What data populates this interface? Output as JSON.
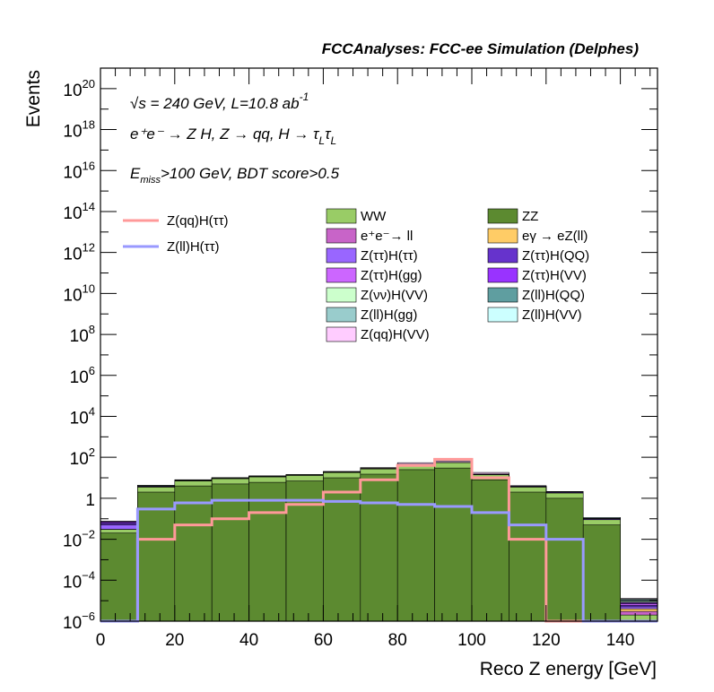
{
  "chart_data": {
    "type": "area",
    "title": "FCCAnalyses: FCC-ee Simulation (Delphes)",
    "xlabel": "Reco Z energy [GeV]",
    "ylabel": "Events",
    "xlim": [
      0,
      150
    ],
    "ylim": [
      1e-06,
      1e+21
    ],
    "y_scale": "log",
    "x_ticks": [
      {
        "v": 0,
        "label": "0"
      },
      {
        "v": 20,
        "label": "20"
      },
      {
        "v": 40,
        "label": "40"
      },
      {
        "v": 60,
        "label": "60"
      },
      {
        "v": 80,
        "label": "80"
      },
      {
        "v": 100,
        "label": "100"
      },
      {
        "v": 120,
        "label": "120"
      },
      {
        "v": 140,
        "label": "140"
      }
    ],
    "y_ticks": [
      {
        "exp": -6,
        "label": "10",
        "sup": "−6"
      },
      {
        "exp": -4,
        "label": "10",
        "sup": "−4"
      },
      {
        "exp": -2,
        "label": "10",
        "sup": "−2"
      },
      {
        "exp": 0,
        "label": "1",
        "sup": ""
      },
      {
        "exp": 2,
        "label": "10",
        "sup": "2"
      },
      {
        "exp": 4,
        "label": "10",
        "sup": "4"
      },
      {
        "exp": 6,
        "label": "10",
        "sup": "6"
      },
      {
        "exp": 8,
        "label": "10",
        "sup": "8"
      },
      {
        "exp": 10,
        "label": "10",
        "sup": "10"
      },
      {
        "exp": 12,
        "label": "10",
        "sup": "12"
      },
      {
        "exp": 14,
        "label": "10",
        "sup": "14"
      },
      {
        "exp": 16,
        "label": "10",
        "sup": "16"
      },
      {
        "exp": 18,
        "label": "10",
        "sup": "18"
      },
      {
        "exp": 20,
        "label": "10",
        "sup": "20"
      }
    ],
    "annotations": {
      "line1": "√s = 240 GeV, L=10.8 ab",
      "line1_sup": "-1",
      "line2": "e⁺e⁻ → Z H, Z → qq, H → τ",
      "line2_sub": "L",
      "line3": "E",
      "line3_sub": "miss",
      "line3_rest": ">100 GeV, BDT score>0.5"
    },
    "x_bin_centers": [
      5,
      15,
      25,
      35,
      45,
      55,
      65,
      75,
      85,
      95,
      105,
      115,
      125,
      135,
      145
    ],
    "series": [
      {
        "name": "ZZ",
        "color": "#5c8a30",
        "values": [
          0.02,
          2,
          4,
          5,
          6,
          7,
          10,
          15,
          25,
          30,
          8,
          2,
          1,
          0.05,
          1e-06
        ]
      },
      {
        "name": "WW",
        "color": "#99cc66",
        "values": [
          0.01,
          1.5,
          3,
          4,
          5,
          6,
          8,
          12,
          20,
          25,
          6,
          1.5,
          0.8,
          0.04,
          1e-06
        ]
      },
      {
        "name": "e⁺e⁻→ ll",
        "color": "#c864c8",
        "values": [
          1e-06,
          1e-06,
          1e-06,
          1e-06,
          1e-06,
          1e-06,
          1e-06,
          1e-06,
          1e-06,
          1e-06,
          1e-06,
          1e-06,
          1e-06,
          1e-06,
          1e-06
        ]
      },
      {
        "name": "eγ → eZ(ll)",
        "color": "#ffcc66",
        "values": [
          1e-06,
          1e-06,
          1e-06,
          0.01,
          1e-06,
          1e-06,
          1e-06,
          1e-06,
          1e-06,
          1e-06,
          1e-06,
          1e-06,
          1e-06,
          1e-06,
          1e-06
        ]
      },
      {
        "name": "Z(ττ)H(ττ)",
        "color": "#9966ff",
        "values": [
          0.02,
          0.05,
          0.05,
          0.05,
          0.05,
          0.05,
          0.05,
          0.05,
          0.05,
          0.05,
          0.05,
          0.05,
          0.01,
          0.001,
          1e-06
        ]
      },
      {
        "name": "Z(ττ)H(QQ)",
        "color": "#6633cc",
        "values": [
          0.01,
          0.3,
          0.3,
          0.3,
          0.3,
          0.3,
          0.3,
          0.3,
          0.3,
          0.3,
          0.5,
          0.3,
          0.2,
          0.01,
          1e-06
        ]
      },
      {
        "name": "Z(ττ)H(gg)",
        "color": "#cc66ff",
        "values": [
          0.001,
          0.01,
          0.01,
          0.01,
          0.01,
          0.01,
          0.01,
          0.01,
          0.01,
          0.01,
          0.01,
          0.01,
          0.01,
          0.001,
          1e-06
        ]
      },
      {
        "name": "Z(ττ)H(VV)",
        "color": "#9933ff",
        "values": [
          0.01,
          0.1,
          0.1,
          0.1,
          0.1,
          0.1,
          0.1,
          0.1,
          0.1,
          0.1,
          0.1,
          0.05,
          0.02,
          0.001,
          1e-06
        ]
      },
      {
        "name": "Z(νν)H(VV)",
        "color": "#ccffcc",
        "values": [
          0.001,
          0.3,
          0.5,
          0.6,
          0.7,
          0.8,
          1,
          1,
          1,
          1,
          0.5,
          0.1,
          0.05,
          0.001,
          1e-06
        ]
      },
      {
        "name": "Z(ll)H(QQ)",
        "color": "#5f9ea0",
        "values": [
          0.001,
          0.01,
          0.01,
          0.01,
          0.01,
          0.01,
          0.01,
          0.01,
          0.01,
          0.01,
          0.01,
          0.01,
          0.01,
          0.001,
          1e-06
        ]
      },
      {
        "name": "Z(ll)H(gg)",
        "color": "#99cccc",
        "values": [
          0.001,
          0.001,
          0.001,
          0.001,
          0.001,
          0.001,
          0.001,
          0.001,
          0.001,
          0.001,
          0.001,
          0.001,
          0.001,
          0.0001,
          1e-06
        ]
      },
      {
        "name": "Z(ll)H(VV)",
        "color": "#ccffff",
        "values": [
          0.001,
          0.01,
          0.01,
          0.01,
          0.01,
          0.01,
          0.01,
          0.01,
          0.01,
          0.01,
          0.01,
          0.01,
          0.01,
          0.01,
          1e-06
        ]
      },
      {
        "name": "Z(qq)H(VV)",
        "color": "#ffccff",
        "values": [
          1e-06,
          1e-06,
          0.01,
          0.05,
          0.1,
          0.3,
          1,
          3,
          8,
          10,
          3,
          0.1,
          1e-06,
          1e-06,
          1e-06
        ]
      }
    ],
    "overlays": [
      {
        "name": "Z(qq)H(ττ)",
        "color": "#ff9999",
        "values": [
          1e-06,
          0.01,
          0.05,
          0.1,
          0.2,
          0.5,
          2,
          8,
          40,
          80,
          10,
          0.01,
          1e-06,
          1e-06,
          1e-06
        ]
      },
      {
        "name": "Z(ll)H(ττ)",
        "color": "#9999ff",
        "values": [
          1e-06,
          0.3,
          0.6,
          0.8,
          0.8,
          0.8,
          0.7,
          0.6,
          0.5,
          0.4,
          0.2,
          0.05,
          0.01,
          1e-06,
          1e-06
        ]
      }
    ],
    "legend_position": "top-right",
    "grid": false
  }
}
